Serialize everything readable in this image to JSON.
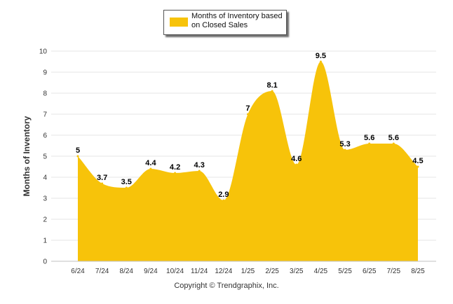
{
  "chart_data": {
    "type": "area",
    "categories": [
      "6/24",
      "7/24",
      "8/24",
      "9/24",
      "10/24",
      "11/24",
      "12/24",
      "1/25",
      "2/25",
      "3/25",
      "4/25",
      "5/25",
      "6/25",
      "7/25",
      "8/25"
    ],
    "series": [
      {
        "name": "Months of Inventory based on Closed Sales",
        "values": [
          5,
          3.7,
          3.5,
          4.4,
          4.2,
          4.3,
          2.9,
          7,
          8.1,
          4.6,
          9.5,
          5.3,
          5.6,
          5.6,
          4.5
        ]
      }
    ],
    "data_labels": [
      "5",
      "3.7",
      "3.5",
      "4.4",
      "4.2",
      "4.3",
      "2.9",
      "7",
      "8.1",
      "4.6",
      "9.5",
      "5.3",
      "5.6",
      "5.6",
      "4.5"
    ],
    "ylabel": "Months of Inventory",
    "xlabel": "",
    "ylim": [
      0,
      10
    ],
    "yticks": [
      "0",
      "1",
      "2",
      "3",
      "4",
      "5",
      "6",
      "7",
      "8",
      "9",
      "10"
    ],
    "grid": true,
    "legend_position": "top-center",
    "colors": {
      "series": "#F7C30A",
      "grid": "#e6e6e6",
      "axis": "#c0c0c0",
      "text": "#333333"
    }
  },
  "credit": "Copyright © Trendgraphix, Inc."
}
